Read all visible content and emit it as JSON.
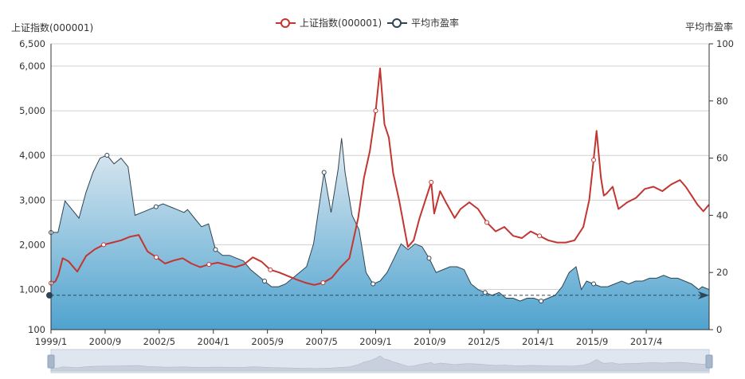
{
  "chart_data": {
    "type": "line",
    "legend": {
      "position": "top-center",
      "items": [
        {
          "label": "上证指数(000001)",
          "color": "#c23531"
        },
        {
          "label": "平均市盈率",
          "color": "#2f4554"
        }
      ]
    },
    "left_axis": {
      "name": "上证指数(000001)",
      "ticks": [
        "100",
        "1,000",
        "2,000",
        "3,000",
        "4,000",
        "5,000",
        "6,000",
        "6,500"
      ],
      "tick_values": [
        100,
        1000,
        2000,
        3000,
        4000,
        5000,
        6000,
        6500
      ],
      "range": [
        100,
        6500
      ]
    },
    "right_axis": {
      "name": "平均市盈率",
      "ticks": [
        "0",
        "20",
        "40",
        "60",
        "80",
        "100"
      ],
      "tick_values": [
        0,
        20,
        40,
        60,
        80,
        100
      ],
      "range": [
        0,
        100
      ]
    },
    "x_axis": {
      "tick_labels": [
        "1999/1",
        "2000/9",
        "2002/5",
        "2004/1",
        "2005/9",
        "2007/5",
        "2009/1",
        "2010/9",
        "2012/5",
        "2014/1",
        "2015/9",
        "2017/4"
      ]
    },
    "mark_line": {
      "series": "平均市盈率",
      "value": 12,
      "label": "12"
    },
    "colors": {
      "index_line": "#c23531",
      "pe_line": "#2f4554",
      "area_top": "#e2ebf2",
      "area_bottom": "#4fa3cf",
      "grid": "#d0d0d0"
    },
    "series": [
      {
        "name": "上证指数(000001)",
        "axis": "left",
        "values": [
          [
            0,
            1140
          ],
          [
            3,
            1180
          ],
          [
            5,
            1320
          ],
          [
            8,
            1700
          ],
          [
            12,
            1630
          ],
          [
            18,
            1400
          ],
          [
            24,
            1750
          ],
          [
            30,
            1900
          ],
          [
            36,
            2000
          ],
          [
            42,
            2050
          ],
          [
            48,
            2100
          ],
          [
            54,
            2180
          ],
          [
            60,
            2220
          ],
          [
            66,
            1850
          ],
          [
            72,
            1720
          ],
          [
            78,
            1580
          ],
          [
            84,
            1650
          ],
          [
            90,
            1700
          ],
          [
            96,
            1580
          ],
          [
            102,
            1500
          ],
          [
            108,
            1560
          ],
          [
            114,
            1600
          ],
          [
            120,
            1550
          ],
          [
            126,
            1500
          ],
          [
            132,
            1560
          ],
          [
            138,
            1720
          ],
          [
            144,
            1620
          ],
          [
            150,
            1440
          ],
          [
            156,
            1380
          ],
          [
            162,
            1300
          ],
          [
            168,
            1220
          ],
          [
            174,
            1150
          ],
          [
            180,
            1100
          ],
          [
            186,
            1150
          ],
          [
            192,
            1260
          ],
          [
            198,
            1500
          ],
          [
            204,
            1700
          ],
          [
            210,
            2600
          ],
          [
            214,
            3500
          ],
          [
            218,
            4100
          ],
          [
            222,
            5000
          ],
          [
            225,
            5950
          ],
          [
            228,
            4700
          ],
          [
            231,
            4400
          ],
          [
            234,
            3600
          ],
          [
            238,
            3000
          ],
          [
            242,
            2300
          ],
          [
            244,
            1950
          ],
          [
            248,
            2100
          ],
          [
            252,
            2600
          ],
          [
            256,
            3000
          ],
          [
            260,
            3400
          ],
          [
            262,
            2700
          ],
          [
            266,
            3200
          ],
          [
            270,
            2950
          ],
          [
            276,
            2600
          ],
          [
            280,
            2800
          ],
          [
            286,
            2950
          ],
          [
            292,
            2800
          ],
          [
            298,
            2500
          ],
          [
            304,
            2300
          ],
          [
            310,
            2400
          ],
          [
            316,
            2200
          ],
          [
            322,
            2150
          ],
          [
            328,
            2300
          ],
          [
            334,
            2200
          ],
          [
            340,
            2100
          ],
          [
            346,
            2050
          ],
          [
            352,
            2050
          ],
          [
            358,
            2100
          ],
          [
            364,
            2400
          ],
          [
            368,
            3000
          ],
          [
            371,
            3900
          ],
          [
            373,
            4550
          ],
          [
            376,
            3500
          ],
          [
            378,
            3100
          ],
          [
            380,
            3150
          ],
          [
            384,
            3300
          ],
          [
            388,
            2800
          ],
          [
            394,
            2950
          ],
          [
            400,
            3050
          ],
          [
            406,
            3250
          ],
          [
            412,
            3300
          ],
          [
            418,
            3200
          ],
          [
            424,
            3350
          ],
          [
            430,
            3450
          ],
          [
            434,
            3300
          ],
          [
            438,
            3100
          ],
          [
            442,
            2900
          ],
          [
            446,
            2750
          ],
          [
            450,
            2900
          ]
        ]
      },
      {
        "name": "平均市盈率",
        "axis": "right",
        "values": [
          [
            0,
            34
          ],
          [
            4,
            34
          ],
          [
            8,
            45
          ],
          [
            12,
            42
          ],
          [
            16,
            39
          ],
          [
            20,
            48
          ],
          [
            24,
            55
          ],
          [
            28,
            60
          ],
          [
            32,
            61
          ],
          [
            36,
            58
          ],
          [
            40,
            60
          ],
          [
            44,
            57
          ],
          [
            48,
            40
          ],
          [
            52,
            41
          ],
          [
            56,
            42
          ],
          [
            60,
            43
          ],
          [
            64,
            44
          ],
          [
            68,
            43
          ],
          [
            72,
            42
          ],
          [
            76,
            41
          ],
          [
            78,
            42
          ],
          [
            82,
            39
          ],
          [
            86,
            36
          ],
          [
            90,
            37
          ],
          [
            94,
            28
          ],
          [
            98,
            26
          ],
          [
            102,
            26
          ],
          [
            106,
            25
          ],
          [
            110,
            24
          ],
          [
            114,
            21
          ],
          [
            118,
            19
          ],
          [
            122,
            17
          ],
          [
            126,
            15
          ],
          [
            130,
            15
          ],
          [
            134,
            16
          ],
          [
            138,
            18
          ],
          [
            142,
            20
          ],
          [
            146,
            22
          ],
          [
            150,
            30
          ],
          [
            156,
            55
          ],
          [
            160,
            41
          ],
          [
            164,
            56
          ],
          [
            166,
            67
          ],
          [
            168,
            55
          ],
          [
            172,
            40
          ],
          [
            176,
            35
          ],
          [
            180,
            20
          ],
          [
            184,
            16
          ],
          [
            188,
            17
          ],
          [
            192,
            20
          ],
          [
            196,
            25
          ],
          [
            200,
            30
          ],
          [
            204,
            28
          ],
          [
            208,
            30
          ],
          [
            212,
            29
          ],
          [
            216,
            25
          ],
          [
            220,
            20
          ],
          [
            224,
            21
          ],
          [
            228,
            22
          ],
          [
            232,
            22
          ],
          [
            236,
            21
          ],
          [
            240,
            16
          ],
          [
            244,
            14
          ],
          [
            248,
            13
          ],
          [
            252,
            12
          ],
          [
            256,
            13
          ],
          [
            260,
            11
          ],
          [
            264,
            11
          ],
          [
            268,
            10
          ],
          [
            272,
            11
          ],
          [
            276,
            11
          ],
          [
            280,
            10
          ],
          [
            284,
            11
          ],
          [
            288,
            12
          ],
          [
            292,
            15
          ],
          [
            296,
            20
          ],
          [
            300,
            22
          ],
          [
            303,
            14
          ],
          [
            306,
            17
          ],
          [
            310,
            16
          ],
          [
            314,
            15
          ],
          [
            318,
            15
          ],
          [
            322,
            16
          ],
          [
            326,
            17
          ],
          [
            330,
            16
          ],
          [
            334,
            17
          ],
          [
            338,
            17
          ],
          [
            342,
            18
          ],
          [
            346,
            18
          ],
          [
            350,
            19
          ],
          [
            354,
            18
          ],
          [
            358,
            18
          ],
          [
            362,
            17
          ],
          [
            366,
            16
          ],
          [
            370,
            14
          ],
          [
            372,
            15
          ],
          [
            376,
            14
          ]
        ]
      }
    ]
  }
}
